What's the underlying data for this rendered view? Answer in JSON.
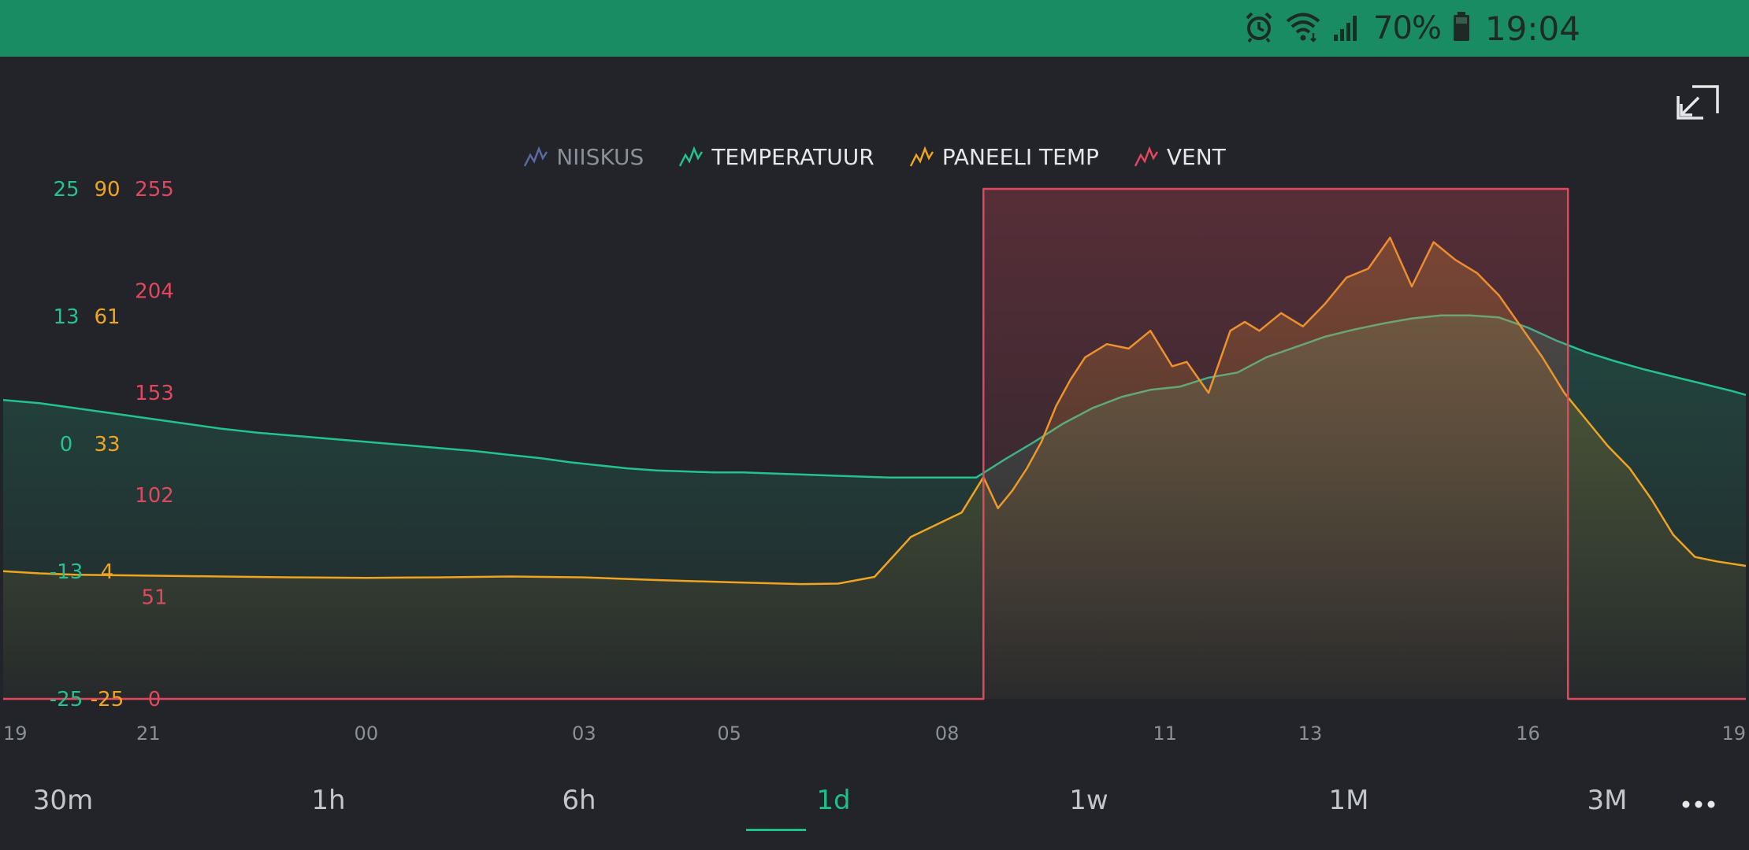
{
  "status_bar": {
    "battery_percent": "70%",
    "clock": "19:04",
    "icons": [
      "alarm-icon",
      "wifi-icon",
      "signal-icon",
      "battery-icon"
    ]
  },
  "legend": [
    {
      "name": "NIISKUS",
      "color": "#5b6aa0"
    },
    {
      "name": "TEMPERATUUR",
      "color": "#23c28f"
    },
    {
      "name": "PANEELI TEMP",
      "color": "#f0a420"
    },
    {
      "name": "VENT",
      "color": "#e0485f"
    }
  ],
  "range_buttons": [
    "30m",
    "1h",
    "6h",
    "1d",
    "1w",
    "1M",
    "3M"
  ],
  "range_selected": "1d",
  "chart_data": {
    "type": "line",
    "x": [
      "19",
      "21",
      "00",
      "03",
      "05",
      "08",
      "11",
      "13",
      "16",
      "19"
    ],
    "y_axes": [
      {
        "name": "TEMPERATUUR",
        "ticks": [
          "25",
          "13",
          "0",
          "-13",
          "-25"
        ],
        "color": "#23c28f",
        "ylim": [
          -25,
          25
        ]
      },
      {
        "name": "PANEELI TEMP",
        "ticks": [
          "90",
          "61",
          "33",
          "4",
          "-25"
        ],
        "color": "#f0a420",
        "ylim": [
          -25,
          90
        ]
      },
      {
        "name": "VENT",
        "ticks": [
          "255",
          "204",
          "153",
          "102",
          "51",
          "0"
        ],
        "color": "#e0485f",
        "ylim": [
          0,
          255
        ]
      }
    ],
    "series": [
      {
        "name": "TEMPERATUUR",
        "color": "#23c28f",
        "x": [
          0,
          0.5,
          1,
          1.5,
          2,
          2.5,
          3,
          3.5,
          4,
          4.5,
          5,
          5.5,
          6,
          6.5,
          7,
          7.4,
          7.8,
          8.2,
          8.6,
          9,
          9.4,
          9.8,
          10.2,
          10.6,
          11,
          11.4,
          11.8,
          12.2,
          12.6,
          13,
          13.4,
          13.8,
          14.2,
          14.6,
          15,
          15.4,
          15.8,
          16.2,
          16.6,
          17,
          17.4,
          17.8,
          18.2,
          18.6,
          19,
          19.4,
          19.8,
          20.2,
          20.6,
          21,
          21.4,
          21.8,
          22.2,
          22.6,
          23,
          23.4,
          23.8,
          24
        ],
        "values": [
          4.3,
          4.0,
          3.5,
          3.0,
          2.5,
          2.0,
          1.5,
          1.1,
          0.8,
          0.5,
          0.2,
          -0.1,
          -0.4,
          -0.7,
          -1.1,
          -1.4,
          -1.8,
          -2.1,
          -2.4,
          -2.6,
          -2.7,
          -2.8,
          -2.8,
          -2.9,
          -3.0,
          -3.1,
          -3.2,
          -3.3,
          -3.3,
          -3.3,
          -3.3,
          -1.5,
          0.2,
          2.0,
          3.5,
          4.6,
          5.3,
          5.6,
          6.5,
          7.0,
          8.5,
          9.5,
          10.5,
          11.2,
          11.8,
          12.3,
          12.6,
          12.6,
          12.4,
          11.4,
          10.1,
          9.0,
          8.1,
          7.3,
          6.6,
          5.9,
          5.2,
          4.8
        ]
      },
      {
        "name": "PANEELI TEMP",
        "color": "#f0a420",
        "x": [
          0,
          0.5,
          1,
          2,
          3,
          4,
          5,
          6,
          7,
          8,
          9,
          10,
          11,
          11.5,
          12,
          12.5,
          13.2,
          13.5,
          13.7,
          13.9,
          14.1,
          14.3,
          14.5,
          14.7,
          14.9,
          15.2,
          15.5,
          15.8,
          16.1,
          16.3,
          16.6,
          16.9,
          17.1,
          17.3,
          17.6,
          17.9,
          18.2,
          18.5,
          18.8,
          19.1,
          19.4,
          19.7,
          20.0,
          20.3,
          20.6,
          20.9,
          21.2,
          21.5,
          21.8,
          22.1,
          22.4,
          22.7,
          23.0,
          23.3,
          23.6,
          24.0
        ],
        "values": [
          3.8,
          3.3,
          3.0,
          2.8,
          2.6,
          2.4,
          2.3,
          2.4,
          2.6,
          2.4,
          1.8,
          1.3,
          0.9,
          1.0,
          2.5,
          11.5,
          17.0,
          25.0,
          18.0,
          22.0,
          27.0,
          33.0,
          41.0,
          47.0,
          52.0,
          55.0,
          54.0,
          58.0,
          50.0,
          51.0,
          44.0,
          58.0,
          60.0,
          58.0,
          62.0,
          59.0,
          64.0,
          70.0,
          72.0,
          79.0,
          68.0,
          78.0,
          74.0,
          71.0,
          66.0,
          59.0,
          52.0,
          44.0,
          38.0,
          32.0,
          27.0,
          20.0,
          12.0,
          7.0,
          6.0,
          5.0
        ]
      },
      {
        "name": "VENT",
        "color": "#e0485f",
        "x": [
          0,
          13.5,
          13.5,
          21.55,
          21.55,
          24
        ],
        "values": [
          0,
          0,
          255,
          255,
          0,
          0
        ]
      }
    ]
  }
}
